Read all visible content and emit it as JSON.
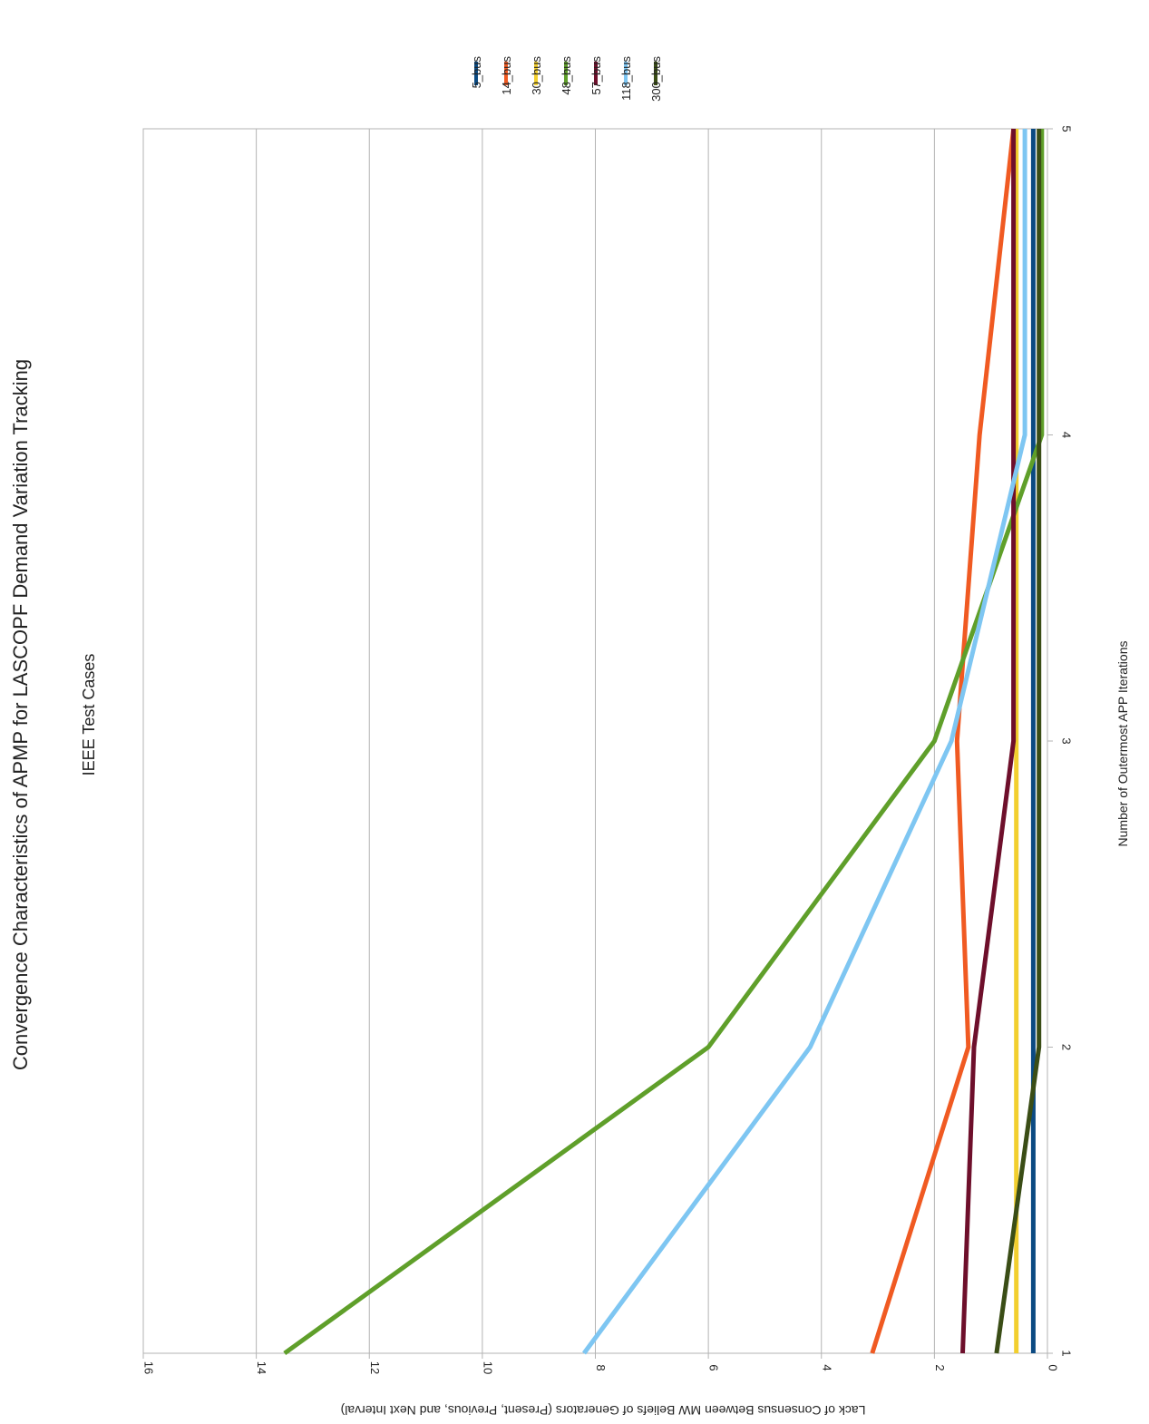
{
  "chart_data": {
    "type": "line",
    "title": "Convergence Characteristics of APMP for LASCOPF Demand Variation Tracking",
    "subtitle": "IEEE Test Cases",
    "xlabel": "Number of Outermost APP Iterations",
    "ylabel": "Lack of Consensus Between MW Beliefs of Generators (Present, Previous, and Next Interval)",
    "x": [
      1,
      2,
      3,
      4,
      5
    ],
    "xlim": [
      1,
      5
    ],
    "ylim": [
      0,
      16
    ],
    "yticks": [
      0,
      2,
      4,
      6,
      8,
      10,
      12,
      14,
      16
    ],
    "xticks": [
      1,
      2,
      3,
      4,
      5
    ],
    "grid": true,
    "legend_position": "top",
    "series": [
      {
        "name": "5_bus",
        "color": "#0b4a82",
        "values": [
          0.25,
          0.25,
          0.25,
          0.25,
          0.25
        ]
      },
      {
        "name": "14_bus",
        "color": "#f05a22",
        "values": [
          3.1,
          1.4,
          1.6,
          1.2,
          0.6
        ]
      },
      {
        "name": "30_bus",
        "color": "#f2cf2e",
        "values": [
          0.55,
          0.55,
          0.55,
          0.55,
          0.55
        ]
      },
      {
        "name": "48_bus",
        "color": "#5f9f2a",
        "values": [
          13.5,
          6.0,
          2.0,
          0.1,
          0.1
        ]
      },
      {
        "name": "57_bus",
        "color": "#6e0f2b",
        "values": [
          1.5,
          1.3,
          0.6,
          0.6,
          0.6
        ]
      },
      {
        "name": "118_bus",
        "color": "#7ec6f2",
        "values": [
          8.2,
          4.2,
          1.7,
          0.4,
          0.4
        ]
      },
      {
        "name": "300_bus",
        "color": "#3a4d16",
        "values": [
          0.9,
          0.15,
          0.15,
          0.15,
          0.15
        ]
      }
    ]
  }
}
